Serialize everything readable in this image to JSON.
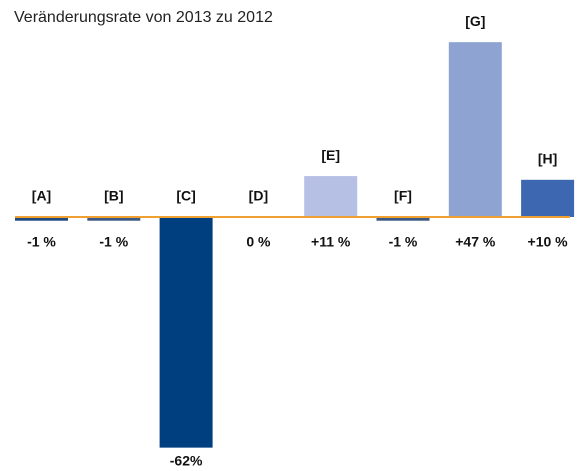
{
  "chart_data": {
    "type": "bar",
    "title": "Veränderungsrate von 2013 zu 2012",
    "categories": [
      "[A]",
      "[B]",
      "[C]",
      "[D]",
      "[E]",
      "[F]",
      "[G]",
      "[H]"
    ],
    "values": [
      -1,
      -1,
      -62,
      0,
      11,
      -1,
      47,
      10
    ],
    "value_labels": [
      "-1 %",
      "-1 %",
      "-62%",
      "0 %",
      "+11 %",
      "-1 %",
      "+47 %",
      "+10 %"
    ],
    "colors": [
      "#1f4a80",
      "#3a5a85",
      "#003f7f",
      "#003f7f",
      "#b6c0e4",
      "#3a5a85",
      "#8fa3d3",
      "#3e67b1"
    ],
    "baseline_color": "#f0a030"
  }
}
